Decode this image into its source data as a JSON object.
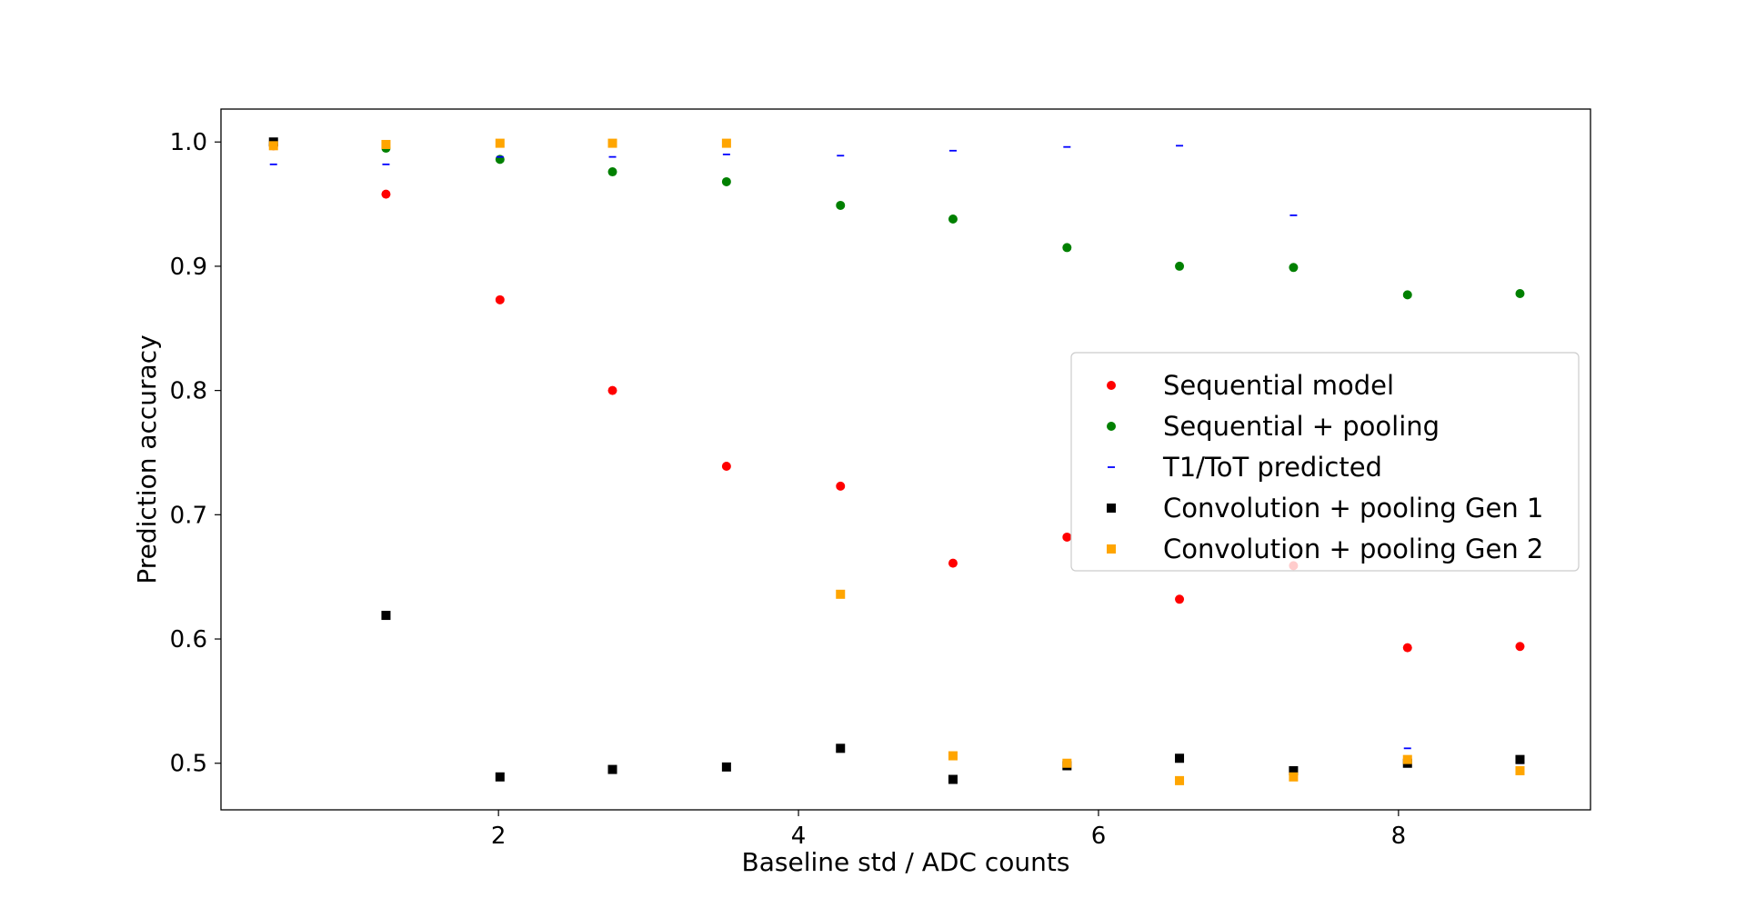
{
  "chart_data": {
    "type": "scatter",
    "xlabel": "Baseline std / ADC counts",
    "ylabel": "Prediction accuracy",
    "xlim": [
      0.15,
      9.28
    ],
    "ylim": [
      0.4625,
      1.0265
    ],
    "xticks": [
      2,
      4,
      6,
      8
    ],
    "xtick_labels": [
      "2",
      "4",
      "6",
      "8"
    ],
    "yticks": [
      0.5,
      0.6,
      0.7,
      0.8,
      0.9,
      1.0
    ],
    "ytick_labels": [
      "0.5",
      "0.6",
      "0.7",
      "0.8",
      "0.9",
      "1.0"
    ],
    "grid": false,
    "legend_position": "center-right",
    "series": [
      {
        "name": "Sequential model",
        "marker": "circle",
        "color": "#ff0000",
        "points": [
          {
            "x": 0.5,
            "y": 0.997
          },
          {
            "x": 1.25,
            "y": 0.958
          },
          {
            "x": 2.01,
            "y": 0.873
          },
          {
            "x": 2.76,
            "y": 0.8
          },
          {
            "x": 3.52,
            "y": 0.739
          },
          {
            "x": 4.28,
            "y": 0.723
          },
          {
            "x": 5.03,
            "y": 0.661
          },
          {
            "x": 5.79,
            "y": 0.682
          },
          {
            "x": 6.54,
            "y": 0.632
          },
          {
            "x": 7.3,
            "y": 0.659
          },
          {
            "x": 8.06,
            "y": 0.593
          },
          {
            "x": 8.81,
            "y": 0.594
          }
        ]
      },
      {
        "name": "Sequential + pooling",
        "marker": "circle",
        "color": "#008000",
        "points": [
          {
            "x": 0.5,
            "y": 0.998
          },
          {
            "x": 1.25,
            "y": 0.995
          },
          {
            "x": 2.01,
            "y": 0.986
          },
          {
            "x": 2.76,
            "y": 0.976
          },
          {
            "x": 3.52,
            "y": 0.968
          },
          {
            "x": 4.28,
            "y": 0.949
          },
          {
            "x": 5.03,
            "y": 0.938
          },
          {
            "x": 5.79,
            "y": 0.915
          },
          {
            "x": 6.54,
            "y": 0.9
          },
          {
            "x": 7.3,
            "y": 0.899
          },
          {
            "x": 8.06,
            "y": 0.877
          },
          {
            "x": 8.81,
            "y": 0.878
          }
        ]
      },
      {
        "name": "T1/ToT predicted",
        "marker": "hline",
        "color": "#0000ff",
        "points": [
          {
            "x": 0.5,
            "y": 0.982
          },
          {
            "x": 1.25,
            "y": 0.982
          },
          {
            "x": 2.01,
            "y": 0.988
          },
          {
            "x": 2.76,
            "y": 0.988
          },
          {
            "x": 3.52,
            "y": 0.99
          },
          {
            "x": 4.28,
            "y": 0.989
          },
          {
            "x": 5.03,
            "y": 0.993
          },
          {
            "x": 5.79,
            "y": 0.996
          },
          {
            "x": 6.54,
            "y": 0.997
          },
          {
            "x": 7.3,
            "y": 0.941
          },
          {
            "x": 8.06,
            "y": 0.512
          },
          {
            "x": 8.81,
            "y": 0.5
          }
        ]
      },
      {
        "name": "Convolution + pooling Gen 1",
        "marker": "square",
        "color": "#000000",
        "points": [
          {
            "x": 0.5,
            "y": 1.0
          },
          {
            "x": 1.25,
            "y": 0.619
          },
          {
            "x": 2.01,
            "y": 0.489
          },
          {
            "x": 2.76,
            "y": 0.495
          },
          {
            "x": 3.52,
            "y": 0.497
          },
          {
            "x": 4.28,
            "y": 0.512
          },
          {
            "x": 5.03,
            "y": 0.487
          },
          {
            "x": 5.79,
            "y": 0.498
          },
          {
            "x": 6.54,
            "y": 0.504
          },
          {
            "x": 7.3,
            "y": 0.494
          },
          {
            "x": 8.06,
            "y": 0.5
          },
          {
            "x": 8.81,
            "y": 0.503
          }
        ]
      },
      {
        "name": "Convolution + pooling Gen 2",
        "marker": "square",
        "color": "#ffa500",
        "points": [
          {
            "x": 0.5,
            "y": 0.997
          },
          {
            "x": 1.25,
            "y": 0.998
          },
          {
            "x": 2.01,
            "y": 0.999
          },
          {
            "x": 2.76,
            "y": 0.999
          },
          {
            "x": 3.52,
            "y": 0.999
          },
          {
            "x": 4.28,
            "y": 0.636
          },
          {
            "x": 5.03,
            "y": 0.506
          },
          {
            "x": 5.79,
            "y": 0.5
          },
          {
            "x": 6.54,
            "y": 0.486
          },
          {
            "x": 7.3,
            "y": 0.489
          },
          {
            "x": 8.06,
            "y": 0.503
          },
          {
            "x": 8.81,
            "y": 0.494
          }
        ]
      }
    ]
  }
}
